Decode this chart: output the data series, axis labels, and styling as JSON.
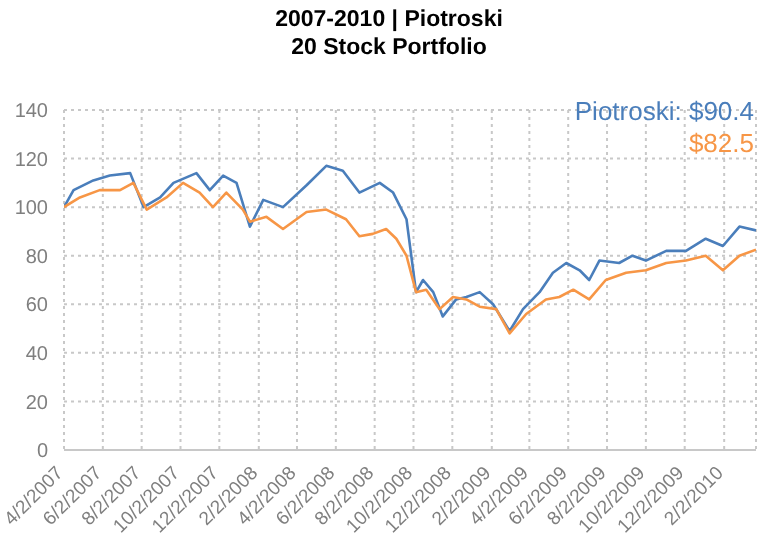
{
  "chart_data": {
    "type": "line",
    "title": "2007-2010 | Piotroski",
    "subtitle": "20 Stock Portfolio",
    "series": [
      {
        "name": "Piotroski: $90.4",
        "color": "#4a7ebb",
        "x": [
          "2007-04-02",
          "2007-04-17",
          "2007-05-18",
          "2007-06-13",
          "2007-07-15",
          "2007-08-05",
          "2007-08-31",
          "2007-09-21",
          "2007-10-27",
          "2007-11-17",
          "2007-12-08",
          "2007-12-29",
          "2008-01-19",
          "2008-02-09",
          "2008-03-11",
          "2008-04-17",
          "2008-05-18",
          "2008-06-13",
          "2008-07-09",
          "2008-08-10",
          "2008-08-31",
          "2008-09-21",
          "2008-10-06",
          "2008-10-17",
          "2008-11-02",
          "2008-11-17",
          "2008-12-08",
          "2008-12-24",
          "2009-01-14",
          "2009-02-04",
          "2009-03-02",
          "2009-03-23",
          "2009-04-18",
          "2009-05-09",
          "2009-05-30",
          "2009-06-20",
          "2009-07-05",
          "2009-07-21",
          "2009-08-21",
          "2009-09-11",
          "2009-10-02",
          "2009-11-03",
          "2009-12-04",
          "2010-01-04",
          "2010-01-31",
          "2010-02-26",
          "2010-03-24"
        ],
        "values": [
          100,
          107,
          111,
          113,
          114,
          100,
          104,
          110,
          114,
          107,
          113,
          110,
          92,
          103,
          100,
          109,
          117,
          115,
          106,
          110,
          106,
          95,
          65,
          70,
          65,
          55,
          62,
          63,
          65,
          60,
          49,
          58,
          65,
          73,
          77,
          74,
          70,
          78,
          77,
          80,
          78,
          82,
          82,
          87,
          84,
          92,
          90.4
        ]
      },
      {
        "color": "#f79646",
        "x": [
          "2007-04-02",
          "2007-04-27",
          "2007-05-28",
          "2007-06-29",
          "2007-07-20",
          "2007-08-10",
          "2007-09-10",
          "2007-10-06",
          "2007-11-01",
          "2007-11-22",
          "2007-12-13",
          "2008-01-08",
          "2008-01-19",
          "2008-02-14",
          "2008-03-11",
          "2008-04-17",
          "2008-05-18",
          "2008-06-18",
          "2008-07-09",
          "2008-07-30",
          "2008-08-20",
          "2008-09-05",
          "2008-09-21",
          "2008-10-06",
          "2008-10-22",
          "2008-11-12",
          "2008-12-03",
          "2008-12-24",
          "2009-01-14",
          "2009-02-09",
          "2009-03-02",
          "2009-03-28",
          "2009-04-28",
          "2009-05-19",
          "2009-06-10",
          "2009-07-05",
          "2009-07-31",
          "2009-09-01",
          "2009-10-02",
          "2009-11-03",
          "2009-12-04",
          "2010-01-04",
          "2010-01-31",
          "2010-02-26",
          "2010-03-24"
        ],
        "values": [
          100,
          104,
          107,
          107,
          110,
          99,
          104,
          110,
          106,
          100,
          106,
          99,
          94,
          96,
          91,
          98,
          99,
          95,
          88,
          89,
          91,
          87,
          80,
          65,
          66,
          58,
          63,
          62,
          59,
          58,
          48,
          56,
          62,
          63,
          66,
          62,
          70,
          73,
          74,
          77,
          78,
          80,
          74,
          80,
          82.5
        ]
      }
    ],
    "annotations": [
      "$82.5"
    ],
    "xlim": [
      "2007-04-02",
      "2010-03-24"
    ],
    "xticks": [
      {
        "value": "2007-04-02",
        "label": "4/2/2007"
      },
      {
        "value": "2007-06-02",
        "label": "6/2/2007"
      },
      {
        "value": "2007-08-02",
        "label": "8/2/2007"
      },
      {
        "value": "2007-10-02",
        "label": "10/2/2007"
      },
      {
        "value": "2007-12-02",
        "label": "12/2/2007"
      },
      {
        "value": "2008-02-02",
        "label": "2/2/2008"
      },
      {
        "value": "2008-04-02",
        "label": "4/2/2008"
      },
      {
        "value": "2008-06-02",
        "label": "6/2/2008"
      },
      {
        "value": "2008-08-02",
        "label": "8/2/2008"
      },
      {
        "value": "2008-10-02",
        "label": "10/2/2008"
      },
      {
        "value": "2008-12-02",
        "label": "12/2/2008"
      },
      {
        "value": "2009-02-02",
        "label": "2/2/2009"
      },
      {
        "value": "2009-04-02",
        "label": "4/2/2009"
      },
      {
        "value": "2009-06-02",
        "label": "6/2/2009"
      },
      {
        "value": "2009-08-02",
        "label": "8/2/2009"
      },
      {
        "value": "2009-10-02",
        "label": "10/2/2009"
      },
      {
        "value": "2009-12-02",
        "label": "12/2/2009"
      },
      {
        "value": "2010-02-02",
        "label": "2/2/2010"
      }
    ],
    "ylim": [
      0,
      140
    ],
    "yticks": [
      0,
      20,
      40,
      60,
      80,
      100,
      120,
      140
    ],
    "grid": true,
    "legend": "top right"
  }
}
